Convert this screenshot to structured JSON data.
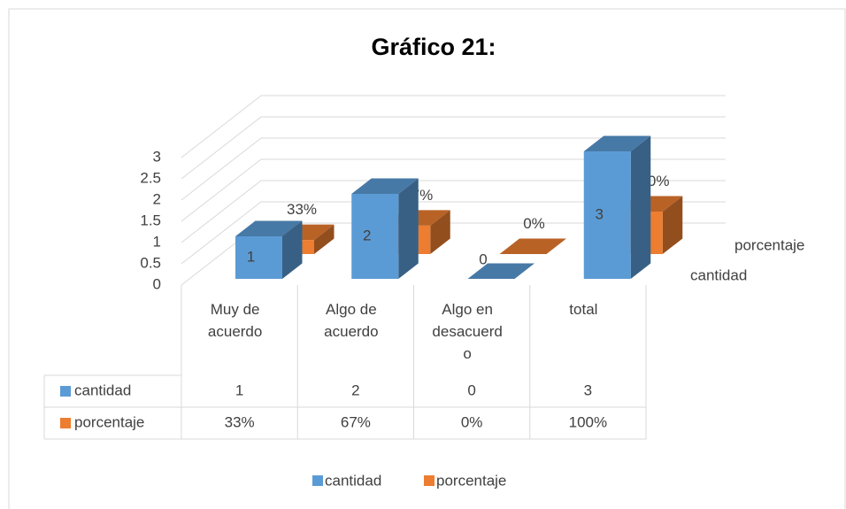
{
  "chart_data": {
    "type": "bar3d",
    "title": "Gráfico 21:",
    "categories": [
      "Muy de acuerdo",
      "Algo de acuerdo",
      "Algo en desacuerdo",
      "total"
    ],
    "series": [
      {
        "name": "cantidad",
        "color": "#5b9bd5",
        "values": [
          1,
          2,
          0,
          3
        ]
      },
      {
        "name": "porcentaje",
        "color": "#ed7d31",
        "values": [
          0.33,
          0.67,
          0,
          1
        ],
        "value_labels": [
          "33%",
          "67%",
          "0%",
          "100%"
        ]
      }
    ],
    "ylim": [
      0,
      3
    ],
    "yticks": [
      0,
      0.5,
      1,
      1.5,
      2,
      2.5,
      3
    ],
    "grid": true,
    "legend": "bottom",
    "data_table": true
  }
}
